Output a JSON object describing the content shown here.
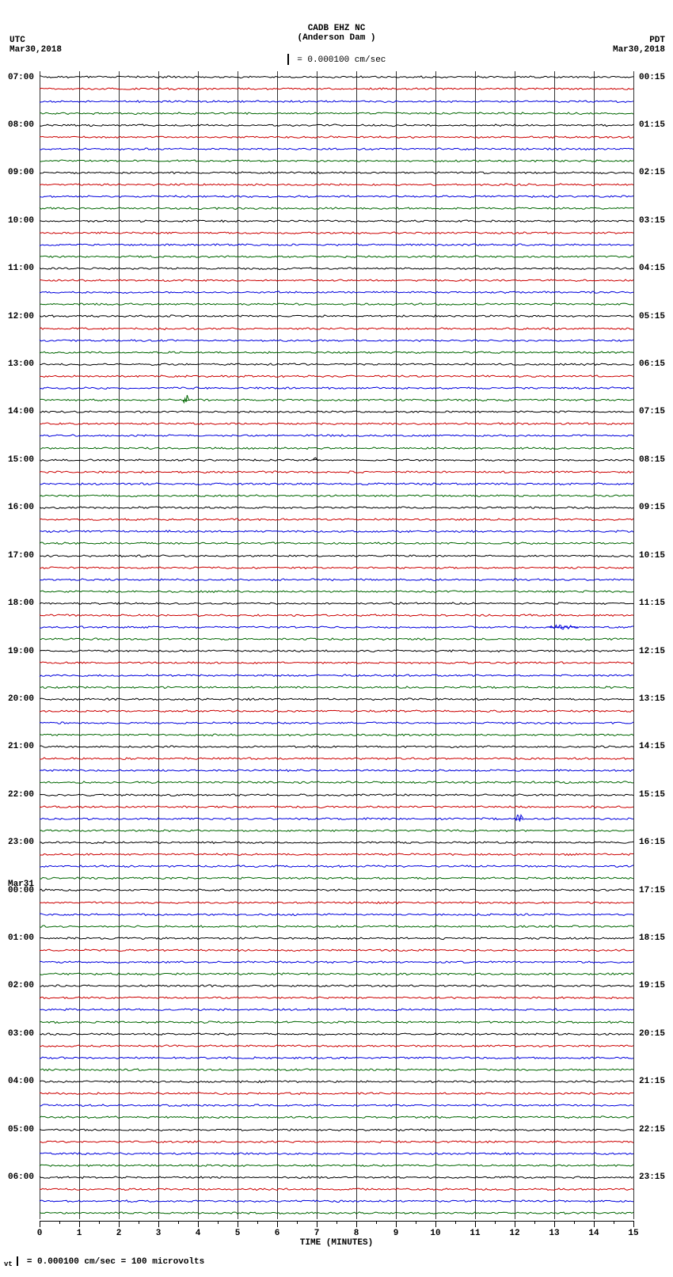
{
  "header": {
    "station_code": "CADB EHZ NC",
    "station_name": "(Anderson Dam )",
    "left_tz": "UTC",
    "left_date": "Mar30,2018",
    "right_tz": "PDT",
    "right_date": "Mar30,2018",
    "scale_text": "= 0.000100 cm/sec"
  },
  "footer": {
    "text": "= 0.000100 cm/sec =   100 microvolts"
  },
  "plot": {
    "background_color": "#ffffff",
    "gridline_color": "#666666",
    "trace_colors": [
      "#000000",
      "#cc0000",
      "#0000dd",
      "#006600"
    ],
    "n_traces": 96,
    "x_minutes": 15,
    "x_major_step": 1,
    "left_hour_start": 7,
    "right_offset_minutes": 15,
    "right_hour_diff": -6.75,
    "date2_label": "Mar31",
    "date2_at_trace": 68,
    "trace_noise_amp": 1.4,
    "trace_noise_freq": 0.9
  },
  "axis": {
    "xlabel": "TIME (MINUTES)",
    "xticks": [
      0,
      1,
      2,
      3,
      4,
      5,
      6,
      7,
      8,
      9,
      10,
      11,
      12,
      13,
      14,
      15
    ]
  },
  "events": [
    {
      "trace": 27,
      "x_min": 3.7,
      "peak": 10,
      "width": 8,
      "color": "#006600"
    },
    {
      "trace": 32,
      "x_min": 7.0,
      "peak": 5,
      "width": 10,
      "color": "#000000"
    },
    {
      "trace": 46,
      "x_min": 13.2,
      "peak": 3,
      "width": 40,
      "color": "#0000dd"
    },
    {
      "trace": 62,
      "x_min": 12.1,
      "peak": 8,
      "width": 12,
      "color": "#0000dd"
    }
  ]
}
